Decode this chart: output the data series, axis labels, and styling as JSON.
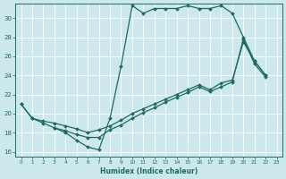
{
  "xlabel": "Humidex (Indice chaleur)",
  "xlim": [
    -0.5,
    23.5
  ],
  "ylim": [
    15.5,
    31.5
  ],
  "yticks": [
    16,
    18,
    20,
    22,
    24,
    26,
    28,
    30
  ],
  "xticks": [
    0,
    1,
    2,
    3,
    4,
    5,
    6,
    7,
    8,
    9,
    10,
    11,
    12,
    13,
    14,
    15,
    16,
    17,
    18,
    19,
    20,
    21,
    22,
    23
  ],
  "bg_color": "#cce8ec",
  "grid_color": "#ffffff",
  "line_color": "#1e6b5e",
  "line1_x": [
    0,
    1,
    2,
    3,
    4,
    5,
    6,
    7,
    8,
    9,
    10,
    11,
    12,
    13,
    14,
    15,
    16,
    17,
    18,
    19,
    20,
    21,
    22
  ],
  "line1_y": [
    21.0,
    19.5,
    19.0,
    18.5,
    18.0,
    17.2,
    16.5,
    16.2,
    19.5,
    25.0,
    31.3,
    30.5,
    31.0,
    31.0,
    31.0,
    31.3,
    31.0,
    31.0,
    31.3,
    30.5,
    28.0,
    25.5,
    24.0
  ],
  "line2_x": [
    0,
    1,
    2,
    3,
    4,
    5,
    6,
    7,
    8,
    9,
    10,
    11,
    12,
    13,
    14,
    15,
    16,
    17,
    18,
    19,
    20,
    21,
    22
  ],
  "line2_y": [
    21.0,
    19.5,
    19.2,
    19.0,
    18.7,
    18.4,
    18.0,
    18.3,
    18.7,
    19.3,
    20.0,
    20.5,
    21.0,
    21.5,
    22.0,
    22.5,
    23.0,
    22.5,
    23.2,
    23.5,
    27.5,
    25.5,
    24.0
  ],
  "line3_x": [
    3,
    4,
    5,
    6,
    7,
    8,
    9,
    10,
    11,
    12,
    13,
    14,
    15,
    16,
    17,
    18,
    19,
    20,
    21,
    22
  ],
  "line3_y": [
    18.5,
    18.2,
    17.8,
    17.5,
    17.5,
    18.3,
    18.8,
    19.5,
    20.1,
    20.6,
    21.2,
    21.7,
    22.2,
    22.8,
    22.3,
    22.8,
    23.3,
    27.8,
    25.2,
    23.8
  ]
}
